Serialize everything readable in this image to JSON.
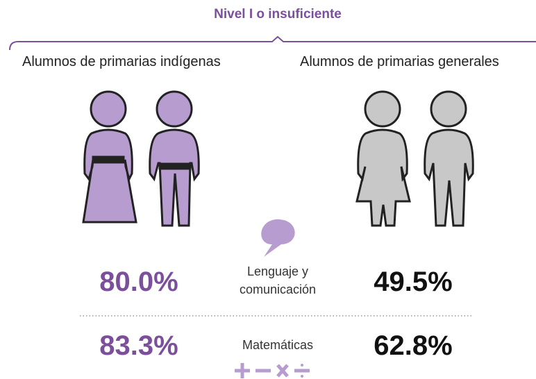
{
  "title": "Nivel I o insuficiente",
  "groups": [
    "Alumnos de primarias indígenas",
    "Alumnos de primarias generales"
  ],
  "rows": [
    {
      "subject": "Lenguaje y comunicación",
      "values": [
        "80.0%",
        "49.5%"
      ]
    },
    {
      "subject": "Matemáticas",
      "values": [
        "83.3%",
        "62.8%"
      ]
    }
  ]
}
